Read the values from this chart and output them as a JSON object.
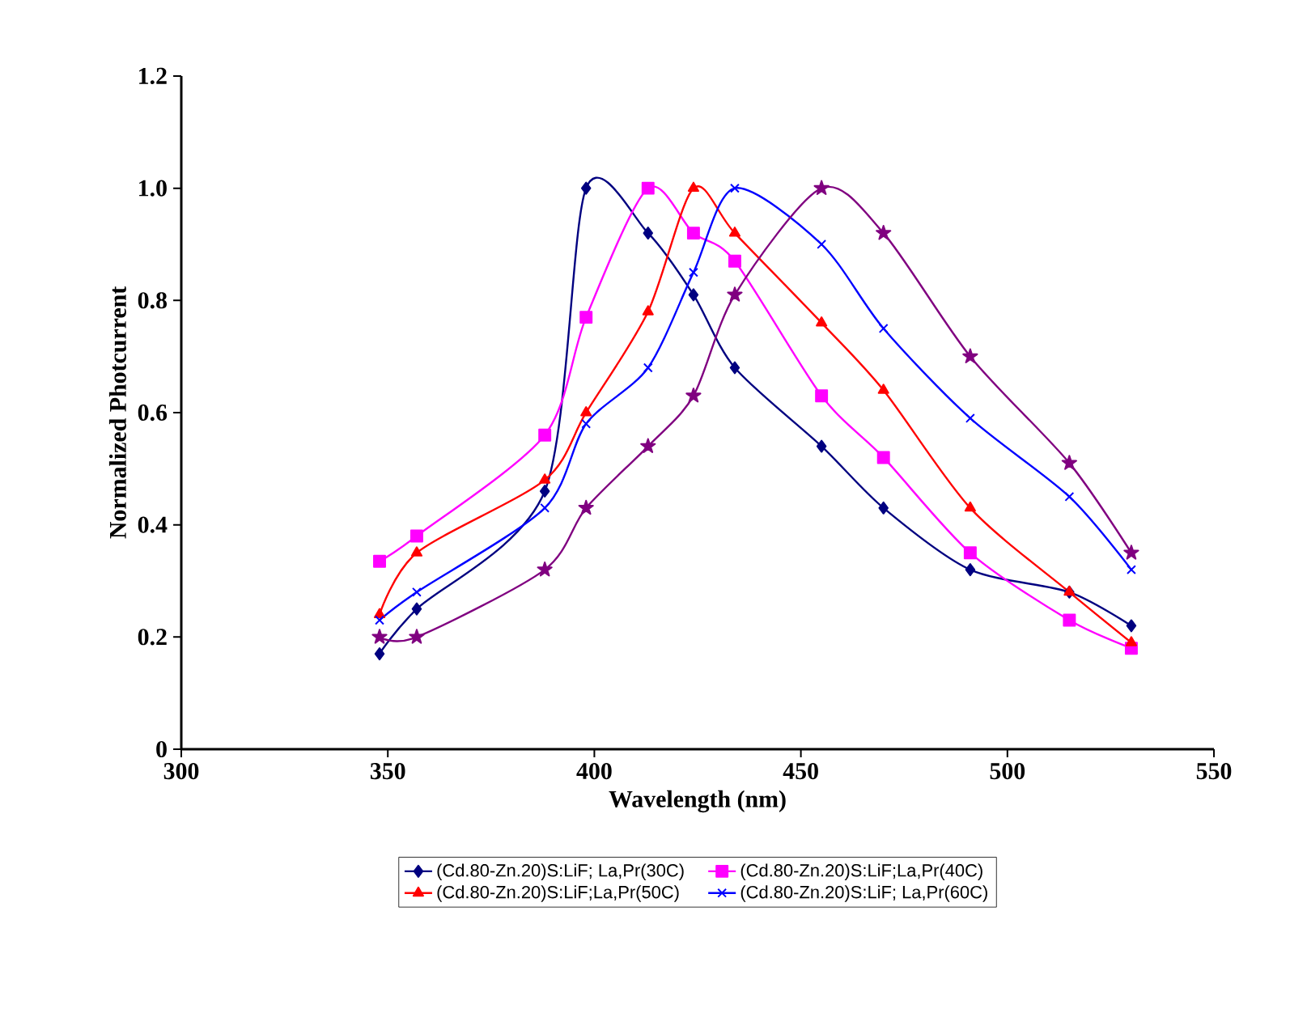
{
  "chart_data": {
    "type": "line",
    "xlabel": "Wavelength (nm)",
    "ylabel": "Normalized Photcurrent",
    "xlim": [
      300,
      550
    ],
    "xticks": [
      300,
      350,
      400,
      450,
      500,
      550
    ],
    "ylim": [
      0,
      1.2
    ],
    "yticks": [
      0,
      {
        "value": 0.2,
        "label": "0.2"
      },
      {
        "value": 0.4,
        "label": "0.4"
      },
      {
        "value": 0.6,
        "label": "0.6"
      },
      {
        "value": 0.8,
        "label": "0.8"
      },
      {
        "value": 1.0,
        "label": "1.0"
      },
      {
        "value": 1.2,
        "label": "1.2"
      }
    ],
    "x": [
      348,
      357,
      388,
      398,
      413,
      424,
      434,
      455,
      470,
      491,
      515,
      530
    ],
    "grid": false,
    "legend": "bottom",
    "series": [
      {
        "name": "(Cd.80-Zn.20)S:LiF; La,Pr(30C)",
        "color": "#000080",
        "marker": "diamond",
        "values": [
          0.17,
          0.25,
          0.46,
          1.0,
          0.92,
          0.81,
          0.68,
          0.54,
          0.43,
          0.32,
          0.28,
          0.22
        ]
      },
      {
        "name": "(Cd.80-Zn.20)S:LiF;La,Pr(40C)",
        "color": "#ff00ff",
        "marker": "square",
        "values": [
          0.335,
          0.38,
          0.56,
          0.77,
          1.0,
          0.92,
          0.87,
          0.63,
          0.52,
          0.35,
          0.23,
          0.18
        ]
      },
      {
        "name": "(Cd.80-Zn.20)S:LiF;La,Pr(50C)",
        "color": "#ff0000",
        "marker": "triangle",
        "values": [
          0.24,
          0.35,
          0.48,
          0.6,
          0.78,
          1.0,
          0.92,
          0.76,
          0.64,
          0.43,
          0.28,
          0.19
        ]
      },
      {
        "name": "(Cd.80-Zn.20)S:LiF; La,Pr(60C)",
        "color": "#0000ff",
        "marker": "cross",
        "values": [
          0.23,
          0.28,
          0.43,
          0.58,
          0.68,
          0.85,
          1.0,
          0.9,
          0.75,
          0.59,
          0.45,
          0.32
        ]
      },
      {
        "color": "#800080",
        "marker": "star",
        "values": [
          0.2,
          0.2,
          0.32,
          0.43,
          0.54,
          0.63,
          0.81,
          1.0,
          0.92,
          0.7,
          0.51,
          0.35
        ]
      }
    ]
  }
}
